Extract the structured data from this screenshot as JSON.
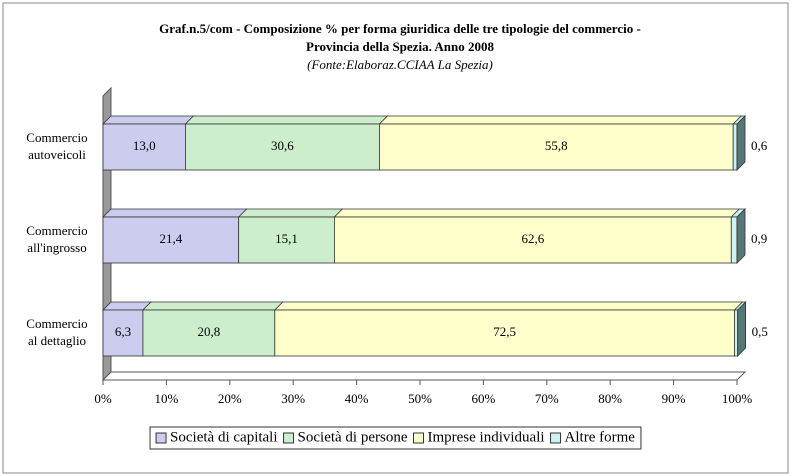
{
  "chart_data": {
    "type": "stacked-bar-horizontal",
    "title": [
      "Graf.n.5/com -  Composizione % per forma giuridica delle tre tipologie del commercio -",
      "Provincia della Spezia. Anno 2008"
    ],
    "subtitle": "(Fonte:Elaboraz.CCIAA La Spezia)",
    "categories": [
      [
        "Commercio",
        "autoveicoli"
      ],
      [
        "Commercio",
        "all'ingrosso"
      ],
      [
        "Commercio",
        "al dettaglio"
      ]
    ],
    "series": [
      {
        "name": "Società di capitali",
        "color": "#ccccee",
        "values": [
          13.0,
          21.4,
          6.3
        ],
        "value_labels": [
          "13,0",
          "21,4",
          "6,3"
        ]
      },
      {
        "name": "Società di persone",
        "color": "#cceecc",
        "values": [
          30.6,
          15.1,
          20.8
        ],
        "value_labels": [
          "30,6",
          "15,1",
          "20,8"
        ]
      },
      {
        "name": "Imprese individuali",
        "color": "#ffffcc",
        "values": [
          55.8,
          62.6,
          72.5
        ],
        "value_labels": [
          "55,8",
          "62,6",
          "72,5"
        ]
      },
      {
        "name": "Altre forme",
        "color": "#ccf2f2",
        "values": [
          0.6,
          0.9,
          0.5
        ],
        "value_labels": [
          "0,6",
          "0,9",
          "0,5"
        ]
      }
    ],
    "xlim": [
      0,
      100
    ],
    "xticks": [
      {
        "value": 0,
        "label": "0%"
      },
      {
        "value": 10,
        "label": "10%"
      },
      {
        "value": 20,
        "label": "20%"
      },
      {
        "value": 30,
        "label": "30%"
      },
      {
        "value": 40,
        "label": "40%"
      },
      {
        "value": 50,
        "label": "50%"
      },
      {
        "value": 60,
        "label": "60%"
      },
      {
        "value": 70,
        "label": "70%"
      },
      {
        "value": 80,
        "label": "80%"
      },
      {
        "value": 90,
        "label": "90%"
      },
      {
        "value": 100,
        "label": "100%"
      }
    ],
    "legend": "bottom"
  }
}
